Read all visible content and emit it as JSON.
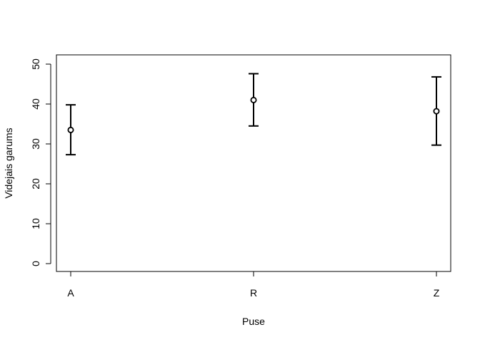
{
  "chart_data": {
    "type": "scatter",
    "xlabel": "Puse",
    "ylabel": "Videjais garums",
    "categories": [
      "A",
      "R",
      "Z"
    ],
    "ylim": [
      0,
      50
    ],
    "yticks": [
      "0",
      "10",
      "20",
      "30",
      "40",
      "50"
    ],
    "grid": false,
    "points": [
      {
        "x": "A",
        "y": 33.5,
        "lower": 27.3,
        "upper": 39.8
      },
      {
        "x": "R",
        "y": 41.0,
        "lower": 34.5,
        "upper": 47.6
      },
      {
        "x": "Z",
        "y": 38.2,
        "lower": 29.7,
        "upper": 46.8
      }
    ]
  }
}
